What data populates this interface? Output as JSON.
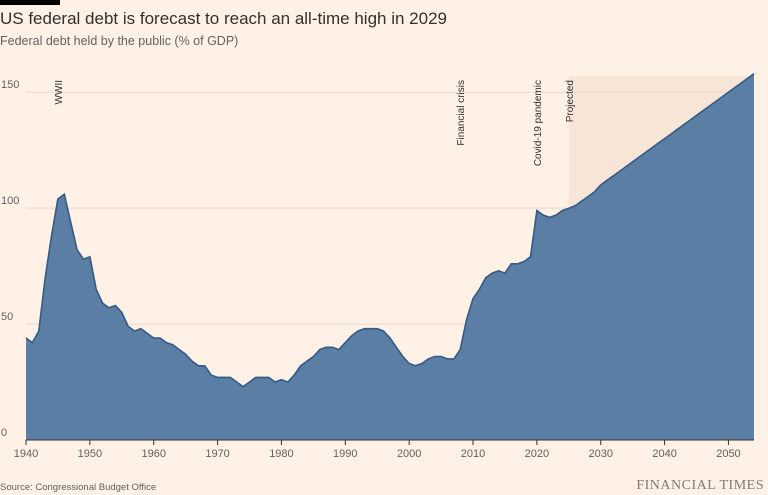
{
  "title": "US federal debt is forecast to reach an all-time high in 2029",
  "subtitle": "Federal debt held by the public (% of GDP)",
  "source": "Source: Congressional Budget Office",
  "brand": "FINANCIAL TIMES",
  "colors": {
    "background": "#fff1e5",
    "area": "#5a7ea4",
    "area_stroke": "#355a85",
    "projected_shade": "#f7e5d7",
    "grid": "#e6d9ce"
  },
  "chart_data": {
    "type": "area",
    "title": "US federal debt is forecast to reach an all-time high in 2029",
    "ylabel": "Federal debt held by the public (% of GDP)",
    "xlabel": "",
    "xlim": [
      1940,
      2054
    ],
    "ylim": [
      0,
      157
    ],
    "x_ticks": [
      1940,
      1950,
      1960,
      1970,
      1980,
      1990,
      2000,
      2010,
      2020,
      2030,
      2040,
      2050
    ],
    "y_ticks": [
      0,
      50,
      100,
      150
    ],
    "projected_from": 2025,
    "series": [
      {
        "name": "Federal debt held by the public",
        "x": [
          1940,
          1941,
          1942,
          1943,
          1944,
          1945,
          1946,
          1947,
          1948,
          1949,
          1950,
          1951,
          1952,
          1953,
          1954,
          1955,
          1956,
          1957,
          1958,
          1959,
          1960,
          1961,
          1962,
          1963,
          1964,
          1965,
          1966,
          1967,
          1968,
          1969,
          1970,
          1971,
          1972,
          1973,
          1974,
          1975,
          1976,
          1977,
          1978,
          1979,
          1980,
          1981,
          1982,
          1983,
          1984,
          1985,
          1986,
          1987,
          1988,
          1989,
          1990,
          1991,
          1992,
          1993,
          1994,
          1995,
          1996,
          1997,
          1998,
          1999,
          2000,
          2001,
          2002,
          2003,
          2004,
          2005,
          2006,
          2007,
          2008,
          2009,
          2010,
          2011,
          2012,
          2013,
          2014,
          2015,
          2016,
          2017,
          2018,
          2019,
          2020,
          2021,
          2022,
          2023,
          2024,
          2025,
          2026,
          2027,
          2028,
          2029,
          2030,
          2031,
          2032,
          2033,
          2034,
          2035,
          2036,
          2037,
          2038,
          2039,
          2040,
          2041,
          2042,
          2043,
          2044,
          2045,
          2046,
          2047,
          2048,
          2049,
          2050,
          2051,
          2052,
          2053,
          2054
        ],
        "values": [
          44,
          42,
          47,
          70,
          88,
          104,
          106,
          94,
          82,
          78,
          79,
          65,
          59,
          57,
          58,
          55,
          49,
          47,
          48,
          46,
          44,
          44,
          42,
          41,
          39,
          37,
          34,
          32,
          32,
          28,
          27,
          27,
          27,
          25,
          23,
          25,
          27,
          27,
          27,
          25,
          26,
          25,
          28,
          32,
          34,
          36,
          39,
          40,
          40,
          39,
          42,
          45,
          47,
          48,
          48,
          48,
          47,
          44,
          40,
          36,
          33,
          32,
          33,
          35,
          36,
          36,
          35,
          35,
          39,
          52,
          61,
          65,
          70,
          72,
          73,
          72,
          76,
          76,
          77,
          79,
          99,
          97,
          96,
          97,
          99,
          100,
          101,
          103,
          105,
          107,
          110,
          112,
          114,
          116,
          118,
          120,
          122,
          124,
          126,
          128,
          130,
          132,
          134,
          136,
          138,
          140,
          142,
          144,
          146,
          148,
          150,
          152,
          154,
          156,
          158
        ]
      }
    ],
    "annotations": [
      {
        "label": "WWII",
        "x": 1945
      },
      {
        "label": "Financial crisis",
        "x": 2008
      },
      {
        "label": "Covid-19 pandemic",
        "x": 2020
      },
      {
        "label": "Projected",
        "x": 2025
      }
    ]
  }
}
